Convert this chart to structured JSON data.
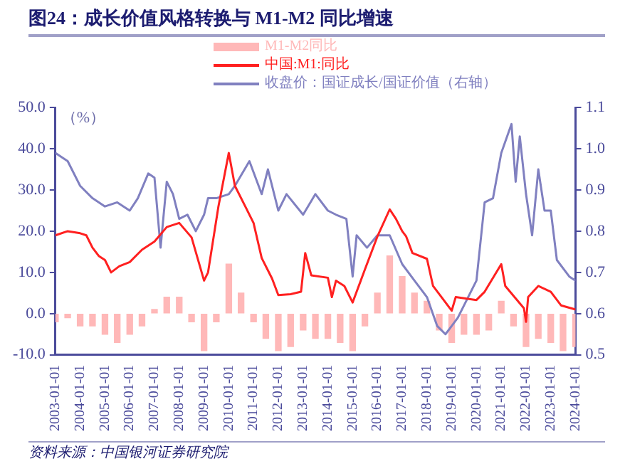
{
  "chart_data": {
    "type": "line",
    "title": "图24：成长价值风格转换与 M1-M2 同比增速",
    "annotations": [
      "（%）",
      "资料来源：中国银河证券研究院"
    ],
    "legend": "top",
    "grid": false,
    "xlim": [
      "2003-01-01",
      "2024-01-01"
    ],
    "xticks": [
      "2003-01-01",
      "2004-01-01",
      "2005-01-01",
      "2006-01-01",
      "2007-01-01",
      "2008-01-01",
      "2009-01-01",
      "2010-01-01",
      "2011-01-01",
      "2012-01-01",
      "2013-01-01",
      "2014-01-01",
      "2015-01-01",
      "2016-01-01",
      "2017-01-01",
      "2018-01-01",
      "2019-01-01",
      "2020-01-01",
      "2021-01-01",
      "2022-01-01",
      "2023-01-01",
      "2024-01-01"
    ],
    "ylim": [
      -10,
      50
    ],
    "yticks": [
      {
        "value": -10,
        "label": "-10.0"
      },
      {
        "value": 0,
        "label": "0.0"
      },
      {
        "value": 10,
        "label": "10.0"
      },
      {
        "value": 20,
        "label": "20.0"
      },
      {
        "value": 30,
        "label": "30.0"
      },
      {
        "value": 40,
        "label": "40.0"
      },
      {
        "value": 50,
        "label": "50.0"
      }
    ],
    "y2lim": [
      0.5,
      1.1
    ],
    "y2ticks": [
      0.5,
      0.6,
      0.7,
      0.8,
      0.9,
      {
        "value": 1,
        "label": "1.0"
      },
      1.1
    ],
    "series": [
      {
        "name": "M1-M2同比",
        "type": "bar",
        "color": "#ffb8b8",
        "x": [
          "2003-01",
          "2003-07",
          "2004-01",
          "2004-07",
          "2005-01",
          "2005-07",
          "2006-01",
          "2006-07",
          "2007-01",
          "2007-07",
          "2008-01",
          "2008-07",
          "2009-01",
          "2009-07",
          "2010-01",
          "2010-07",
          "2011-01",
          "2011-07",
          "2012-01",
          "2012-07",
          "2013-01",
          "2013-07",
          "2014-01",
          "2014-07",
          "2015-01",
          "2015-07",
          "2016-01",
          "2016-07",
          "2017-01",
          "2017-07",
          "2018-01",
          "2018-07",
          "2019-01",
          "2019-07",
          "2020-01",
          "2020-07",
          "2021-01",
          "2021-07",
          "2022-01",
          "2022-07",
          "2023-01",
          "2023-07",
          "2024-01"
        ],
        "values": [
          -2,
          -1,
          -3,
          -3,
          -5,
          -7,
          -5,
          -3,
          1,
          4,
          4,
          -2,
          -9,
          -2,
          12,
          5,
          -2,
          -6,
          -9,
          -8,
          -4,
          -6,
          -6,
          -7,
          -9,
          -3,
          5,
          14,
          9,
          5,
          3,
          -4,
          -7,
          -5,
          -5,
          -4,
          3,
          -3,
          -8,
          -6,
          -7,
          -9,
          -8
        ]
      },
      {
        "name": "中国:M1:同比",
        "color": "#ff2020",
        "x": [
          "2003-01",
          "2003-07",
          "2004-01",
          "2004-04",
          "2004-07",
          "2004-10",
          "2005-01",
          "2005-04",
          "2005-08",
          "2006-01",
          "2006-07",
          "2007-01",
          "2007-07",
          "2008-01",
          "2008-07",
          "2009-01",
          "2009-03",
          "2009-08",
          "2010-01",
          "2010-04",
          "2010-09",
          "2011-01",
          "2011-05",
          "2011-10",
          "2012-01",
          "2012-07",
          "2012-12",
          "2013-02",
          "2013-05",
          "2014-01",
          "2014-03",
          "2014-05",
          "2014-09",
          "2015-01",
          "2015-03",
          "2015-07",
          "2016-01",
          "2016-07",
          "2016-10",
          "2017-01",
          "2017-03",
          "2017-06",
          "2018-01",
          "2018-04",
          "2019-01",
          "2019-03",
          "2020-01",
          "2020-05",
          "2021-01",
          "2021-03",
          "2021-12",
          "2022-01",
          "2022-02",
          "2022-07",
          "2023-01",
          "2023-06",
          "2024-01"
        ],
        "values": [
          19,
          20,
          19.5,
          19,
          16,
          14,
          13,
          10,
          11.5,
          12.5,
          15.5,
          17.5,
          21,
          22,
          18.5,
          8,
          10,
          26,
          39,
          31,
          26,
          22,
          13.5,
          8.5,
          4.5,
          4.7,
          5.3,
          14.7,
          9.3,
          8.7,
          4,
          8,
          6.7,
          2.7,
          5.3,
          10.7,
          18.7,
          25.3,
          23,
          20,
          18.7,
          14.7,
          13.3,
          6.7,
          0.7,
          4,
          3.3,
          5.3,
          12,
          6.7,
          1.3,
          -2,
          4,
          6.7,
          5.3,
          2,
          1
        ]
      },
      {
        "name": "收盘价：国证成长/国证价值（右轴）",
        "axis": "y2",
        "color": "#8080c0",
        "x": [
          "2003-01",
          "2003-07",
          "2004-01",
          "2004-07",
          "2005-01",
          "2005-07",
          "2006-01",
          "2006-05",
          "2006-10",
          "2007-01",
          "2007-04",
          "2007-07",
          "2007-10",
          "2008-01",
          "2008-05",
          "2008-09",
          "2009-01",
          "2009-03",
          "2009-07",
          "2010-01",
          "2010-04",
          "2010-11",
          "2011-05",
          "2011-08",
          "2012-01",
          "2012-05",
          "2013-01",
          "2013-07",
          "2014-01",
          "2014-05",
          "2014-10",
          "2015-01",
          "2015-03",
          "2015-08",
          "2016-01",
          "2016-07",
          "2017-01",
          "2017-07",
          "2018-01",
          "2018-06",
          "2018-10",
          "2019-01",
          "2019-04",
          "2020-01",
          "2020-05",
          "2020-09",
          "2021-01",
          "2021-06",
          "2021-08",
          "2021-10",
          "2022-01",
          "2022-04",
          "2022-07",
          "2022-10",
          "2023-01",
          "2023-04",
          "2023-10",
          "2024-01"
        ],
        "values": [
          0.99,
          0.97,
          0.91,
          0.88,
          0.86,
          0.87,
          0.85,
          0.88,
          0.94,
          0.93,
          0.76,
          0.92,
          0.89,
          0.83,
          0.84,
          0.8,
          0.84,
          0.88,
          0.88,
          0.89,
          0.91,
          0.97,
          0.89,
          0.95,
          0.85,
          0.89,
          0.84,
          0.89,
          0.85,
          0.84,
          0.83,
          0.69,
          0.79,
          0.76,
          0.79,
          0.79,
          0.72,
          0.68,
          0.64,
          0.57,
          0.55,
          0.57,
          0.59,
          0.68,
          0.87,
          0.88,
          0.99,
          1.06,
          0.92,
          1.03,
          0.89,
          0.79,
          0.95,
          0.85,
          0.85,
          0.73,
          0.69,
          0.68
        ]
      }
    ]
  }
}
